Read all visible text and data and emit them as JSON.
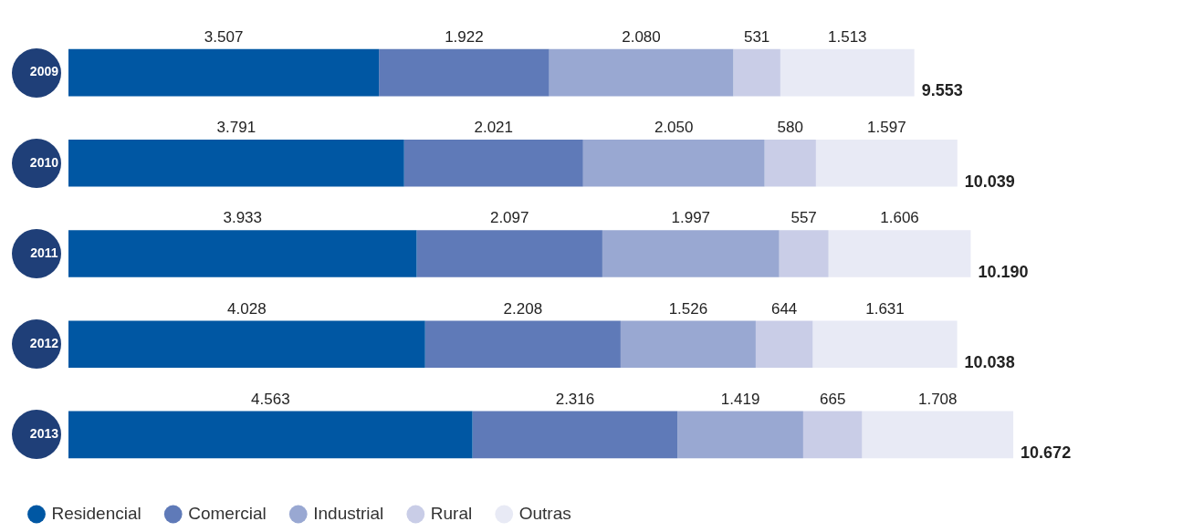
{
  "chart_data": {
    "type": "bar",
    "orientation": "horizontal",
    "stacked": true,
    "legend": "bottom left",
    "categories": [
      "2009",
      "2010",
      "2011",
      "2012",
      "2013"
    ],
    "series": [
      {
        "name": "Residencial",
        "color": "#0057a3",
        "values": [
          3507,
          3791,
          3933,
          4028,
          4563
        ],
        "value_labels": [
          "3.507",
          "3.791",
          "3.933",
          "4.028",
          "4.563"
        ]
      },
      {
        "name": "Comercial",
        "color": "#5f7ab8",
        "values": [
          1922,
          2021,
          2097,
          2208,
          2316
        ],
        "value_labels": [
          "1.922",
          "2.021",
          "2.097",
          "2.208",
          "2.316"
        ]
      },
      {
        "name": "Industrial",
        "color": "#99a8d2",
        "values": [
          2080,
          2050,
          1997,
          1526,
          1419
        ],
        "value_labels": [
          "2.080",
          "2.050",
          "1.997",
          "1.526",
          "1.419"
        ]
      },
      {
        "name": "Rural",
        "color": "#c9cde7",
        "values": [
          531,
          580,
          557,
          644,
          665
        ],
        "value_labels": [
          "531",
          "580",
          "557",
          "644",
          "665"
        ]
      },
      {
        "name": "Outras",
        "color": "#e8eaf5",
        "values": [
          1513,
          1597,
          1606,
          1631,
          1708
        ],
        "value_labels": [
          "1.513",
          "1.597",
          "1.606",
          "1.631",
          "1.708"
        ]
      }
    ],
    "totals": [
      "9.553",
      "10.039",
      "10.190",
      "10.038",
      "10.672"
    ]
  }
}
